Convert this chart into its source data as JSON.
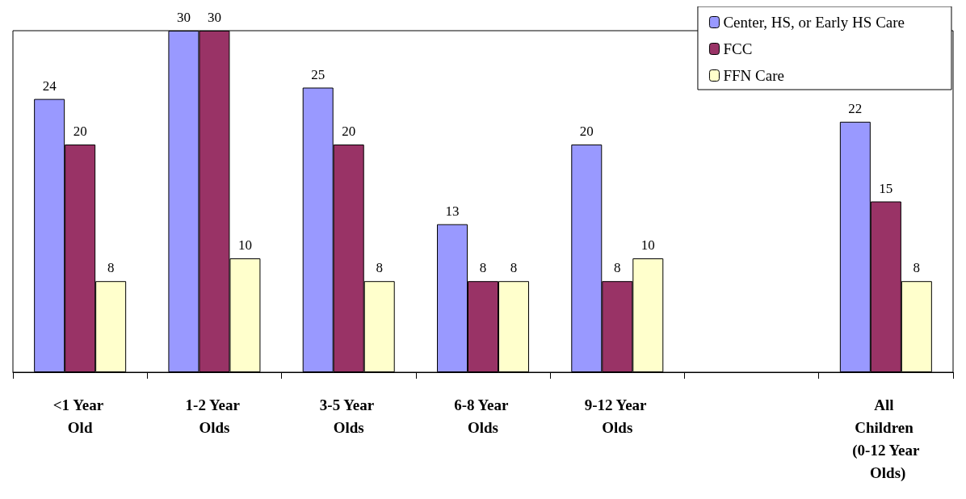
{
  "chart_data": {
    "type": "bar",
    "categories": [
      "<1 Year Old",
      "1-2 Year Olds",
      "3-5 Year Olds",
      "6-8 Year Olds",
      "9-12 Year Olds",
      null,
      "All Children (0-12 Year Olds)"
    ],
    "series": [
      {
        "name": "Center, HS, or Early HS Care",
        "color": "#9999ff",
        "values": [
          24,
          30,
          25,
          13,
          20,
          null,
          22
        ]
      },
      {
        "name": "FCC",
        "color": "#993366",
        "values": [
          20,
          30,
          20,
          8,
          8,
          null,
          15
        ]
      },
      {
        "name": "FFN Care",
        "color": "#ffffcc",
        "values": [
          8,
          10,
          8,
          8,
          10,
          null,
          8
        ]
      }
    ],
    "data_labels": true,
    "grid": false,
    "legend": "top right"
  }
}
